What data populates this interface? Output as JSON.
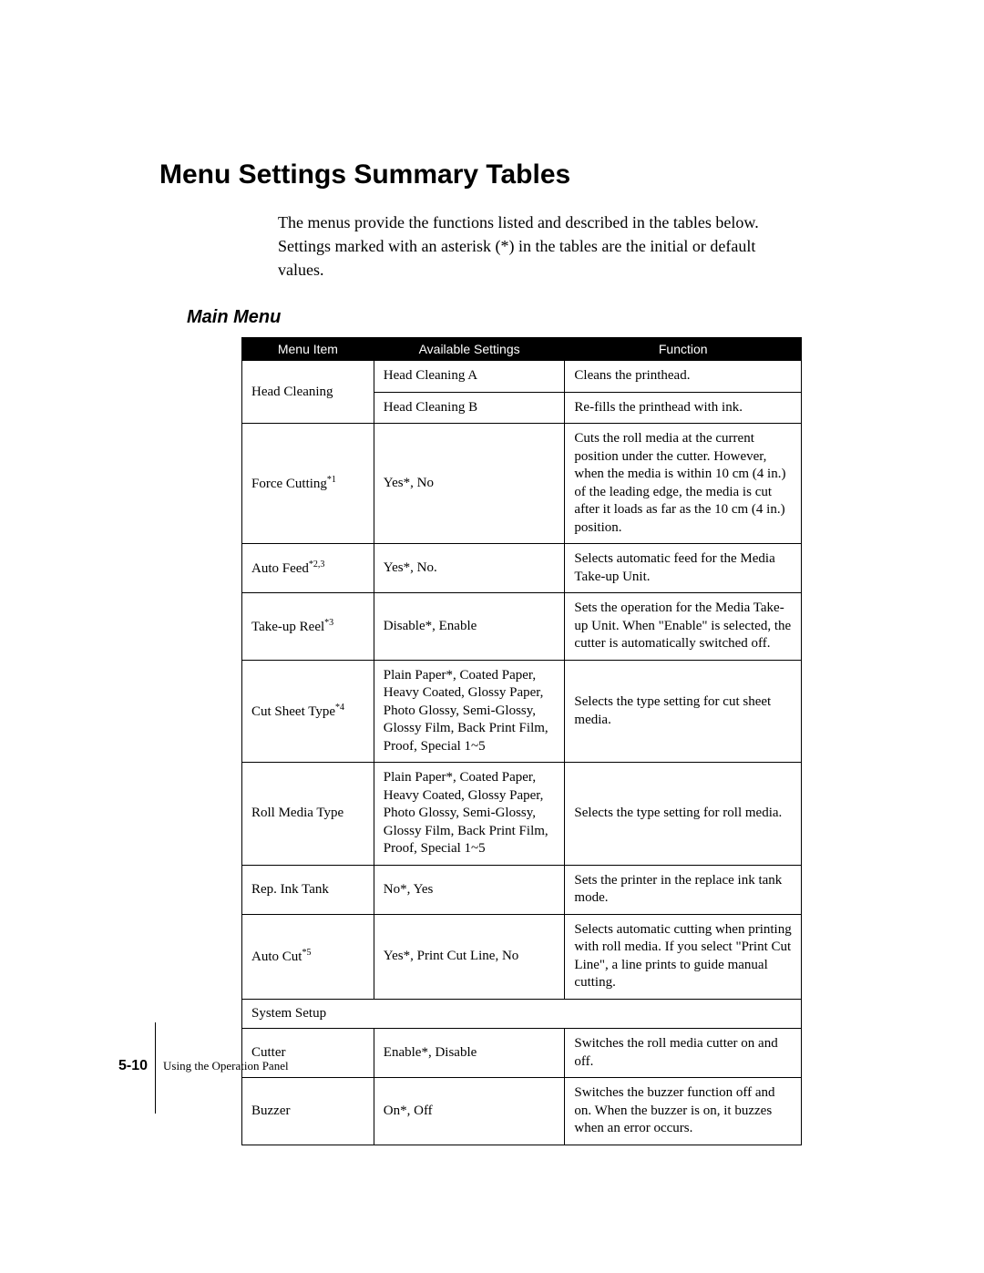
{
  "heading": "Menu Settings Summary Tables",
  "intro": "The menus provide the functions listed and described in the tables below. Settings marked with an asterisk (*) in the tables are the initial or default values.",
  "subheading": "Main Menu",
  "columns": {
    "menu_item": "Menu Item",
    "available_settings": "Available Settings",
    "function": "Function"
  },
  "rows": {
    "r1_item": "Head Cleaning",
    "r1a_settings": "Head Cleaning A",
    "r1a_function": "Cleans the printhead.",
    "r1b_settings": "Head Cleaning B",
    "r1b_function": "Re-fills the printhead with ink.",
    "r2_item_base": "Force Cutting",
    "r2_item_sup": "*1",
    "r2_settings": "Yes*, No",
    "r2_function": "Cuts the roll media at the current position under the cutter. However, when the media is within 10 cm (4 in.) of the leading edge, the media is cut after it loads as far as the 10 cm (4 in.) position.",
    "r3_item_base": "Auto Feed",
    "r3_item_sup": "*2,3",
    "r3_settings": "Yes*, No.",
    "r3_function": "Selects automatic feed for the Media Take-up Unit.",
    "r4_item_base": "Take-up Reel",
    "r4_item_sup": "*3",
    "r4_settings": "Disable*, Enable",
    "r4_function": "Sets the operation for the Media Take-up Unit. When \"Enable\" is selected, the cutter is automatically switched off.",
    "r5_item_base": "Cut Sheet Type",
    "r5_item_sup": "*4",
    "r5_settings": "Plain Paper*, Coated Paper, Heavy Coated, Glossy Paper, Photo Glossy, Semi-Glossy, Glossy Film, Back Print Film, Proof, Special 1~5",
    "r5_function": "Selects the type setting for cut sheet media.",
    "r6_item": "Roll Media Type",
    "r6_settings": "Plain Paper*, Coated Paper, Heavy Coated, Glossy Paper, Photo Glossy, Semi-Glossy, Glossy Film, Back Print Film, Proof, Special 1~5",
    "r6_function": "Selects the type setting for roll media.",
    "r7_item": "Rep. Ink Tank",
    "r7_settings": "No*, Yes",
    "r7_function": "Sets the printer in the replace ink tank mode.",
    "r8_item_base": "Auto Cut",
    "r8_item_sup": "*5",
    "r8_settings": "Yes*, Print Cut Line, No",
    "r8_function": "Selects automatic cutting when printing with roll media. If you select \"Print Cut Line\", a line prints to guide manual cutting.",
    "r9_item": "System Setup",
    "r10_item": "Cutter",
    "r10_settings": "Enable*, Disable",
    "r10_function": "Switches the roll media cutter on and off.",
    "r11_item": "Buzzer",
    "r11_settings": "On*, Off",
    "r11_function": "Switches the buzzer function off and on. When the buzzer is on, it buzzes when an error occurs."
  },
  "footer": {
    "page_number": "5-10",
    "section_title": "Using the Operation Panel"
  },
  "styling": {
    "page_background": "#ffffff",
    "heading_font": "Arial",
    "heading_fontsize": 30,
    "body_font": "Times New Roman",
    "body_fontsize": 18,
    "table_header_bg": "#000000",
    "table_header_color": "#ffffff",
    "table_border_color": "#000000",
    "table_fontsize": 15,
    "subheading_fontsize": 20
  }
}
